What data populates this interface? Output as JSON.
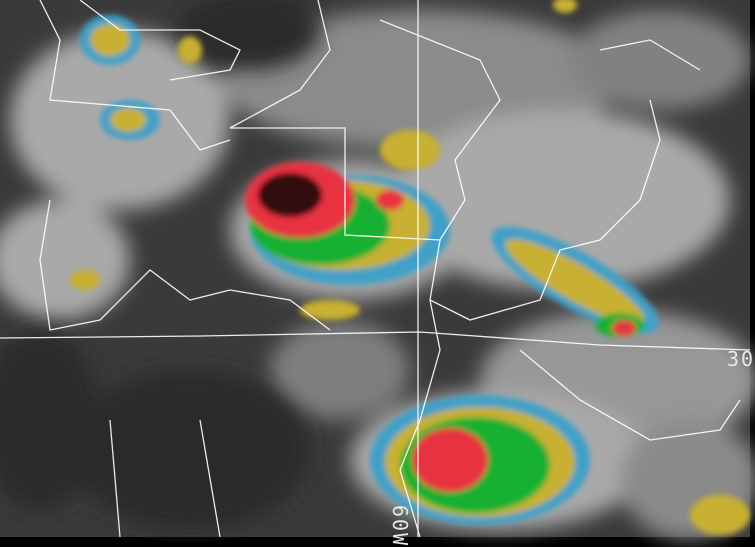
{
  "image_type": "enhanced infrared satellite imagery",
  "labels": {
    "latitude": "30",
    "longitude": "60W"
  },
  "colors": {
    "background": "#3a3a3a",
    "cloud": "#c8c8c8",
    "cyan": "#3fa0c8",
    "yellow": "#c8b030",
    "green": "#18b030",
    "red": "#e83040",
    "dark_core": "#300808",
    "borders": "#ffffff"
  }
}
